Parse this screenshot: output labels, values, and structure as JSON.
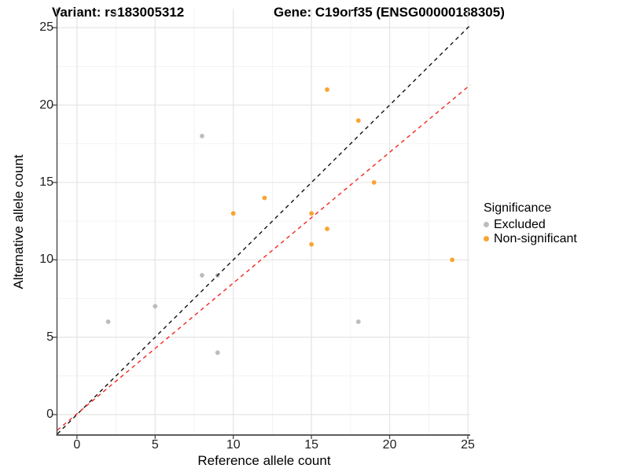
{
  "titles": {
    "variant": "Variant: rs183005312",
    "gene": "Gene: C19orf35 (ENSG00000188305)"
  },
  "legend": {
    "title": "Significance",
    "items": [
      {
        "label": "Excluded",
        "color": "#bdbdbd"
      },
      {
        "label": "Non-significant",
        "color": "#f9a42f"
      }
    ]
  },
  "colors": {
    "excluded_point": "#bdbdbd",
    "nonsignificant_point": "#f9a42f",
    "identity_line": "#111111",
    "fit_line": "#f3261d",
    "axis_line": "#474747",
    "major_grid": "#e4e4e4",
    "minor_grid": "#f0f0f0"
  },
  "chart_data": {
    "type": "scatter",
    "title": "Variant: rs183005312 — Gene: C19orf35 (ENSG00000188305)",
    "xlabel": "Reference allele count",
    "ylabel": "Alternative allele count",
    "xlim": [
      -1.25,
      25.15
    ],
    "ylim": [
      -1.27,
      26.23
    ],
    "x_ticks": [
      0,
      5,
      10,
      15,
      20,
      25
    ],
    "y_ticks": [
      0,
      5,
      10,
      15,
      20,
      25
    ],
    "x_minor_ticks": [
      2.5,
      7.5,
      12.5,
      17.5,
      22.5
    ],
    "y_minor_ticks": [
      2.5,
      7.5,
      12.5,
      17.5,
      22.5
    ],
    "grid": true,
    "legend_position": "right",
    "series": [
      {
        "name": "Excluded",
        "color": "#bdbdbd",
        "points": [
          [
            2,
            6
          ],
          [
            5,
            7
          ],
          [
            8,
            18
          ],
          [
            8,
            9
          ],
          [
            9,
            9
          ],
          [
            9,
            4
          ],
          [
            18,
            6
          ]
        ]
      },
      {
        "name": "Non-significant",
        "color": "#f9a42f",
        "points": [
          [
            10,
            13
          ],
          [
            12,
            14
          ],
          [
            15,
            13
          ],
          [
            15,
            11
          ],
          [
            16,
            21
          ],
          [
            16,
            12
          ],
          [
            18,
            19
          ],
          [
            19,
            15
          ],
          [
            24,
            10
          ]
        ]
      }
    ],
    "lines": [
      {
        "name": "identity-line",
        "slope": 1,
        "intercept": 0,
        "color": "#111111",
        "dash": "5,4.5"
      },
      {
        "name": "fit-line",
        "slope": 0.845,
        "intercept": 0.05,
        "color": "#f3261d",
        "dash": "5,4.5"
      }
    ]
  }
}
